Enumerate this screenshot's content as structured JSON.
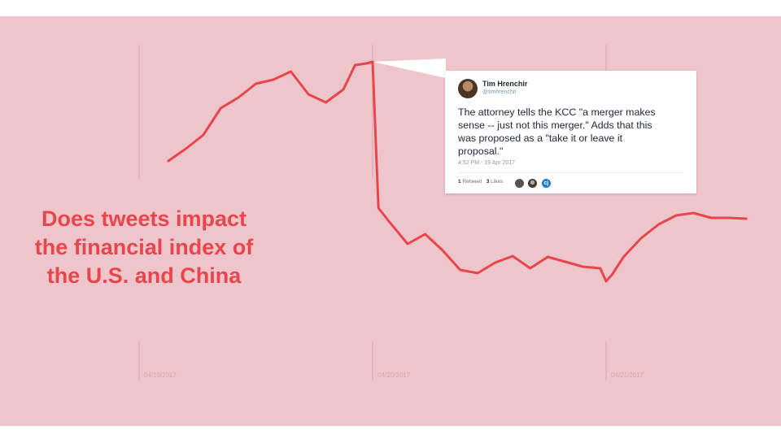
{
  "headline": {
    "lines": [
      "Does tweets impact",
      "the financial index of",
      "the U.S. and China"
    ]
  },
  "tweet": {
    "author": "Tim Hrenchir",
    "handle": "@timhrenchir",
    "text_lines": [
      "The attorney tells the KCC \"a merger makes",
      "sense -- just not this merger.\" Adds that this",
      "was proposed as a \"take it or leave it",
      "proposal.\""
    ],
    "timestamp": "4:52 PM - 19 Apr 2017",
    "retweets_count": "1",
    "retweets_label": "Retweet",
    "likes_count": "3",
    "likes_label": "Likes",
    "liker_icons": [
      "user-avatar-icon",
      "user-avatar-icon",
      "c-logo-icon"
    ],
    "liker_initial": "cj"
  },
  "colors": {
    "background": "#efc5cc",
    "line": "#e8464c",
    "headline": "#e8464c",
    "gridline": "#dca4ad",
    "tick_label": "#d9a7ae"
  },
  "chart_data": {
    "type": "line",
    "x": [
      "04/19/2017 03:00",
      "04/19/2017 04:48",
      "04/19/2017 06:36",
      "04/19/2017 08:24",
      "04/19/2017 10:12",
      "04/19/2017 12:00",
      "04/19/2017 13:48",
      "04/19/2017 15:36",
      "04/19/2017 17:24",
      "04/19/2017 19:12",
      "04/19/2017 21:00",
      "04/19/2017 22:12",
      "04/19/2017 23:24",
      "04/20/2017 00:00",
      "04/20/2017 00:36",
      "04/20/2017 01:48",
      "04/20/2017 03:36",
      "04/20/2017 05:24",
      "04/20/2017 07:12",
      "04/20/2017 09:00",
      "04/20/2017 10:48",
      "04/20/2017 12:36",
      "04/20/2017 14:24",
      "04/20/2017 16:12",
      "04/20/2017 18:00",
      "04/20/2017 19:48",
      "04/20/2017 21:36",
      "04/20/2017 23:24",
      "04/21/2017 00:00",
      "04/21/2017 00:36",
      "04/21/2017 01:48",
      "04/21/2017 03:36",
      "04/21/2017 05:24",
      "04/21/2017 07:12",
      "04/21/2017 09:00",
      "04/21/2017 10:48",
      "04/21/2017 12:36",
      "04/21/2017 14:24"
    ],
    "y": [
      310,
      325,
      342,
      375,
      388,
      405,
      410,
      420,
      392,
      382,
      398,
      428,
      430,
      432,
      252,
      234,
      208,
      220,
      200,
      176,
      172,
      185,
      193,
      178,
      192,
      186,
      180,
      178,
      162,
      170,
      192,
      215,
      232,
      243,
      246,
      240,
      240,
      239
    ],
    "xtick_labels": [
      "04/19/2017",
      "04/20/2017",
      "04/21/2017"
    ],
    "xlabel": "",
    "ylabel": "",
    "grid": "vertical",
    "legend": "none"
  }
}
